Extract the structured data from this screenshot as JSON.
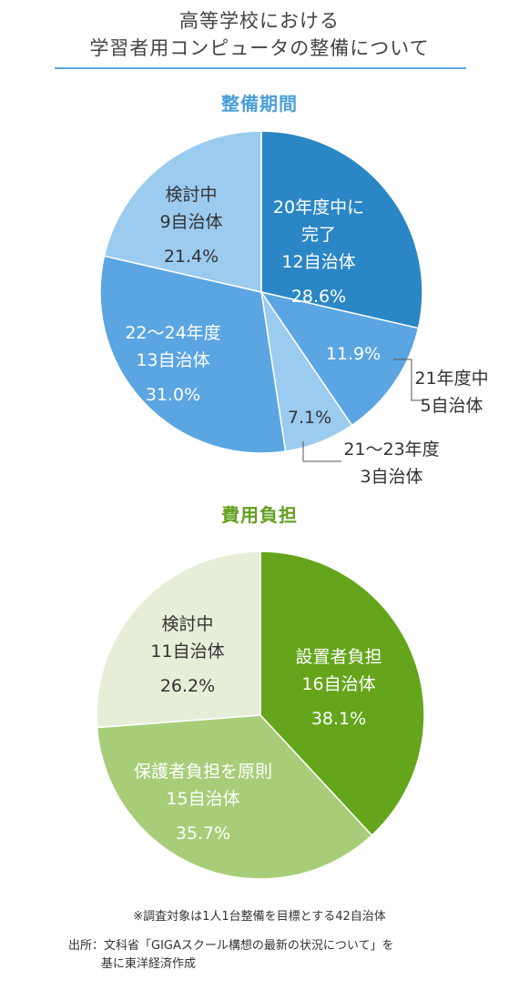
{
  "header": {
    "title_line1": "高等学校における",
    "title_line2": "学習者用コンピュータの整備について"
  },
  "chart_data": [
    {
      "type": "pie",
      "title": "整備期間",
      "title_color": "#4a9fd8",
      "slices": [
        {
          "lines": [
            "20年度中に",
            "完了",
            "12自治体"
          ],
          "value": 28.6,
          "value_label": "28.6%",
          "color": "#2b86c5",
          "text_color": "#ffffff"
        },
        {
          "lines": [
            "21年度中",
            "5自治体"
          ],
          "value": 11.9,
          "value_label": "11.9%",
          "color": "#5aa5e2",
          "text_color": "#ffffff"
        },
        {
          "lines": [
            "21～23年度",
            "3自治体"
          ],
          "value": 7.1,
          "value_label": "7.1%",
          "color": "#9ccbf0",
          "text_color": "#333333"
        },
        {
          "lines": [
            "22～24年度",
            "13自治体"
          ],
          "value": 31.0,
          "value_label": "31.0%",
          "color": "#5aa5e2",
          "text_color": "#ffffff"
        },
        {
          "lines": [
            "検討中",
            "9自治体"
          ],
          "value": 21.4,
          "value_label": "21.4%",
          "color": "#9ccbf0",
          "text_color": "#333333"
        }
      ]
    },
    {
      "type": "pie",
      "title": "費用負担",
      "title_color": "#62a01e",
      "slices": [
        {
          "lines": [
            "設置者負担",
            "16自治体"
          ],
          "value": 38.1,
          "value_label": "38.1%",
          "color": "#64a51b",
          "text_color": "#ffffff"
        },
        {
          "lines": [
            "保護者負担を原則",
            "15自治体"
          ],
          "value": 35.7,
          "value_label": "35.7%",
          "color": "#a8cd78",
          "text_color": "#ffffff"
        },
        {
          "lines": [
            "検討中",
            "11自治体"
          ],
          "value": 26.2,
          "value_label": "26.2%",
          "color": "#e6eed8",
          "text_color": "#333333"
        }
      ]
    }
  ],
  "footer": {
    "note": "※調査対象は1人1台整備を目標とする42自治体",
    "source_line1": "出所：文科省「GIGAスクール構想の最新の状況について」を",
    "source_line2": "基に東洋経済作成"
  }
}
